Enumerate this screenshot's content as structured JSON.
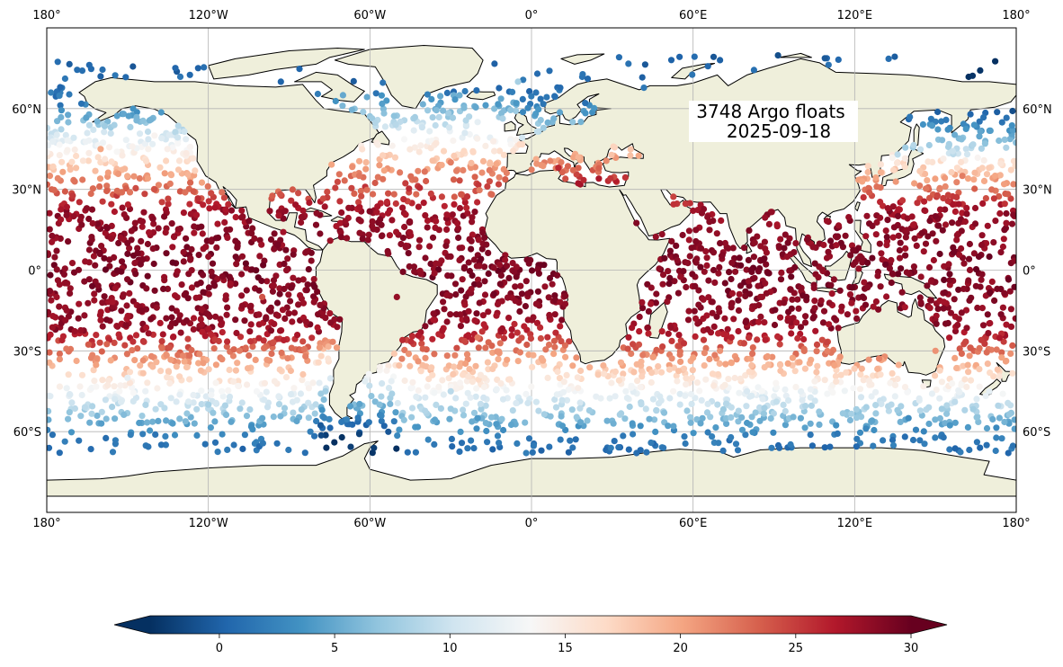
{
  "annotation": {
    "line1": "3748 Argo floats",
    "line2": "2025-09-18"
  },
  "map": {
    "projection": "PlateCarree",
    "extent": {
      "lon": [
        -180,
        180
      ],
      "lat": [
        -90,
        90
      ]
    },
    "land_color": "#efefdb",
    "ocean_color": "#ffffff",
    "coastline_color": "#000000",
    "gridlines": true
  },
  "axes": {
    "lon_ticks": [
      {
        "value": -180,
        "label": "180°"
      },
      {
        "value": -120,
        "label": "120°W"
      },
      {
        "value": -60,
        "label": "60°W"
      },
      {
        "value": 0,
        "label": "0°"
      },
      {
        "value": 60,
        "label": "60°E"
      },
      {
        "value": 120,
        "label": "120°E"
      },
      {
        "value": 180,
        "label": "180°"
      }
    ],
    "lat_ticks": [
      {
        "value": 60,
        "label": "60°N"
      },
      {
        "value": 30,
        "label": "30°N"
      },
      {
        "value": 0,
        "label": "0°"
      },
      {
        "value": -30,
        "label": "30°S"
      },
      {
        "value": -60,
        "label": "60°S"
      }
    ]
  },
  "colorbar": {
    "colormap": "RdBu_r",
    "range": [
      -3,
      30
    ],
    "extend": "both",
    "ticks": [
      {
        "value": 0,
        "label": "0"
      },
      {
        "value": 5,
        "label": "5"
      },
      {
        "value": 10,
        "label": "10"
      },
      {
        "value": 15,
        "label": "15"
      },
      {
        "value": 20,
        "label": "20"
      },
      {
        "value": 25,
        "label": "25"
      },
      {
        "value": 30,
        "label": "30"
      }
    ],
    "stops": [
      "#053061",
      "#2166ac",
      "#4393c3",
      "#92c5de",
      "#d1e5f0",
      "#f7f7f7",
      "#fddbc7",
      "#f4a582",
      "#d6604d",
      "#b2182b",
      "#67001f"
    ]
  },
  "chart_data": {
    "type": "scatter",
    "variable": "temperature",
    "float_count": 3748,
    "date": "2025-09-18",
    "sample_points": [
      [
        -170,
        20,
        28
      ],
      [
        -150,
        10,
        29
      ],
      [
        -140,
        30,
        24
      ],
      [
        -120,
        5,
        28
      ],
      [
        -100,
        -10,
        24
      ],
      [
        -160,
        45,
        20
      ],
      [
        -140,
        50,
        14
      ],
      [
        -150,
        -40,
        12
      ],
      [
        -120,
        -50,
        8
      ],
      [
        -100,
        -55,
        5
      ],
      [
        -40,
        25,
        27
      ],
      [
        -30,
        40,
        22
      ],
      [
        -20,
        55,
        12
      ],
      [
        -50,
        -10,
        28
      ],
      [
        -20,
        -25,
        22
      ],
      [
        -30,
        -45,
        9
      ],
      [
        -20,
        -55,
        4
      ],
      [
        10,
        38,
        26
      ],
      [
        25,
        34,
        27
      ],
      [
        70,
        10,
        29
      ],
      [
        85,
        -10,
        28
      ],
      [
        70,
        -30,
        21
      ],
      [
        80,
        -45,
        11
      ],
      [
        100,
        -55,
        5
      ],
      [
        150,
        20,
        29
      ],
      [
        170,
        5,
        30
      ],
      [
        160,
        35,
        22
      ],
      [
        150,
        -30,
        21
      ],
      [
        170,
        -45,
        12
      ],
      [
        140,
        -55,
        3
      ],
      [
        70,
        78,
        0
      ],
      [
        -160,
        72,
        0
      ],
      [
        -5,
        70,
        8
      ],
      [
        -70,
        65,
        5
      ]
    ]
  }
}
